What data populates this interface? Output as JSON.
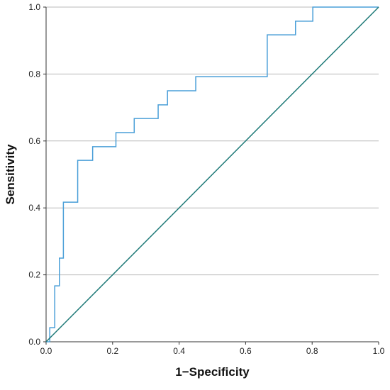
{
  "chart_data": {
    "type": "line",
    "title": "",
    "xlabel": "1−Specificity",
    "ylabel": "Sensitivity",
    "xlim": [
      0,
      1
    ],
    "ylim": [
      0,
      1
    ],
    "xticks": [
      0.0,
      0.2,
      0.4,
      0.6,
      0.8,
      1.0
    ],
    "yticks": [
      0.0,
      0.2,
      0.4,
      0.6,
      0.8,
      1.0
    ],
    "xtick_labels": [
      "0.0",
      "0.2",
      "0.4",
      "0.6",
      "0.8",
      "1.0"
    ],
    "ytick_labels": [
      "0.0",
      "0.2",
      "0.4",
      "0.6",
      "0.8",
      "1.0"
    ],
    "grid": "horizontal",
    "series": [
      {
        "color": "#4a9fd8",
        "step": true,
        "x": [
          0.0,
          0.011,
          0.011,
          0.026,
          0.026,
          0.04,
          0.04,
          0.052,
          0.052,
          0.095,
          0.095,
          0.14,
          0.14,
          0.21,
          0.21,
          0.265,
          0.265,
          0.337,
          0.337,
          0.365,
          0.365,
          0.45,
          0.45,
          0.665,
          0.665,
          0.75,
          0.75,
          0.802,
          0.802,
          1.0
        ],
        "y": [
          0.0,
          0.0,
          0.042,
          0.042,
          0.167,
          0.167,
          0.25,
          0.25,
          0.417,
          0.417,
          0.542,
          0.542,
          0.583,
          0.583,
          0.625,
          0.625,
          0.667,
          0.667,
          0.708,
          0.708,
          0.75,
          0.75,
          0.792,
          0.792,
          0.917,
          0.917,
          0.958,
          0.958,
          1.0,
          1.0
        ]
      },
      {
        "color": "#1f7a78",
        "x": [
          0.0,
          1.0
        ],
        "y": [
          0.0,
          1.0
        ]
      }
    ]
  }
}
